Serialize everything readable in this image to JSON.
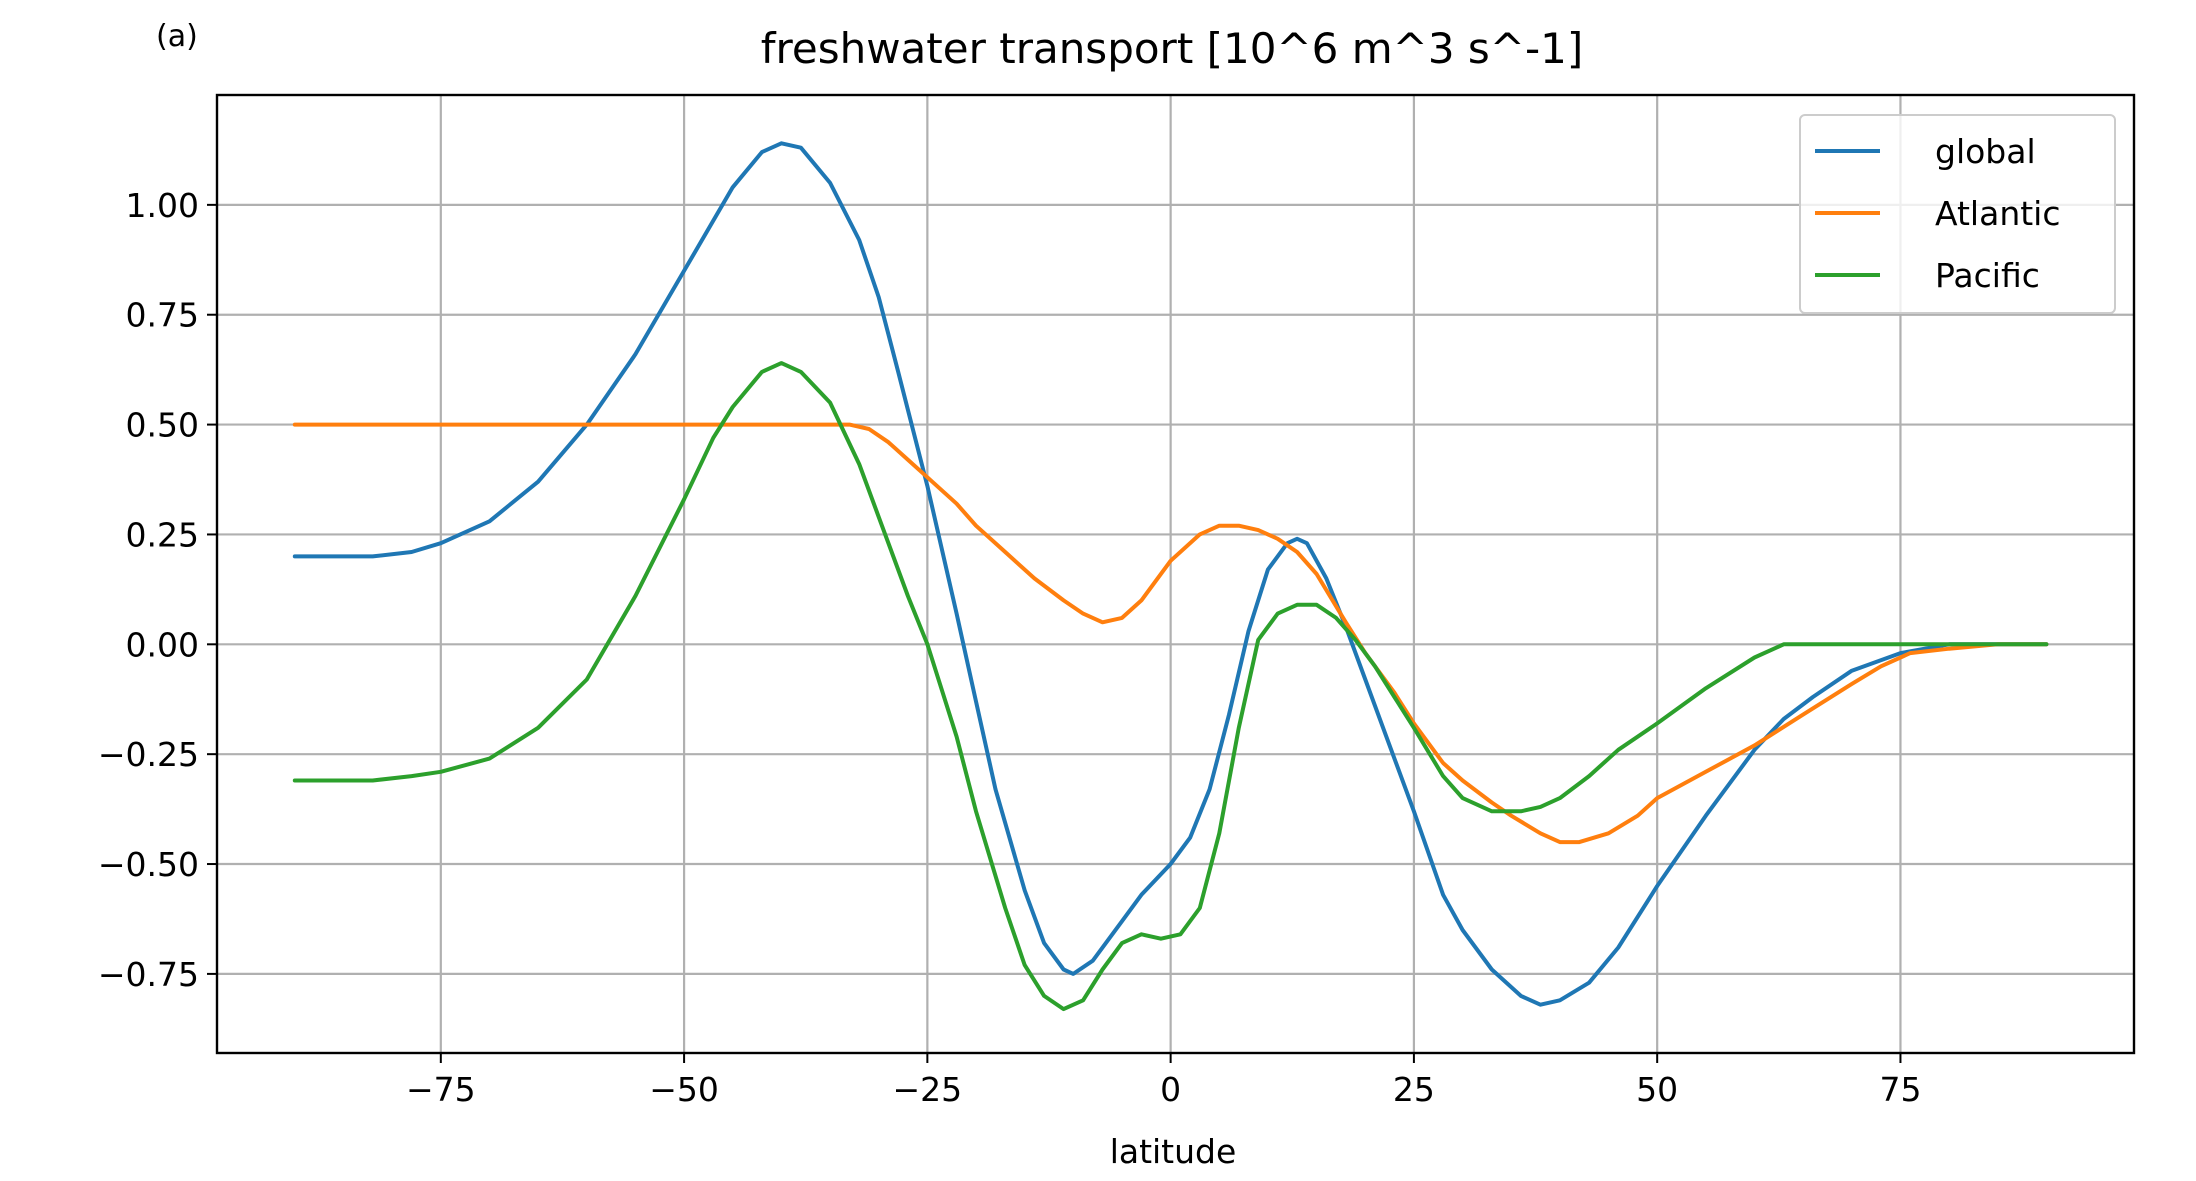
{
  "panel_label": "(a)",
  "chart_data": {
    "type": "line",
    "title": "freshwater transport [10^6 m^3 s^-1]",
    "xlabel": "latitude",
    "ylabel": "",
    "xlim": [
      -98,
      99
    ],
    "ylim": [
      -0.93,
      1.25
    ],
    "xticks": [
      -75,
      -50,
      -25,
      0,
      25,
      50,
      75
    ],
    "xtick_labels": [
      "−75",
      "−50",
      "−25",
      "0",
      "25",
      "50",
      "75"
    ],
    "yticks": [
      -0.75,
      -0.5,
      -0.25,
      0.0,
      0.25,
      0.5,
      0.75,
      1.0
    ],
    "ytick_labels": [
      "−0.75",
      "−0.50",
      "−0.25",
      "0.00",
      "0.25",
      "0.50",
      "0.75",
      "1.00"
    ],
    "grid": true,
    "legend_position": "top-right",
    "series": [
      {
        "name": "global",
        "color": "#1f77b4",
        "x": [
          -90,
          -82,
          -78,
          -75,
          -70,
          -65,
          -60,
          -55,
          -50,
          -45,
          -42,
          -40,
          -38,
          -35,
          -32,
          -30,
          -28,
          -25,
          -22,
          -20,
          -18,
          -15,
          -13,
          -11,
          -10,
          -8,
          -5,
          -3,
          0,
          2,
          4,
          6,
          8,
          10,
          12,
          13,
          14,
          16,
          18,
          20,
          22,
          25,
          28,
          30,
          33,
          36,
          38,
          40,
          43,
          46,
          50,
          55,
          60,
          63,
          66,
          70,
          75,
          80,
          85,
          90
        ],
        "y": [
          0.2,
          0.2,
          0.21,
          0.23,
          0.28,
          0.37,
          0.5,
          0.66,
          0.85,
          1.04,
          1.12,
          1.14,
          1.13,
          1.05,
          0.92,
          0.79,
          0.62,
          0.36,
          0.07,
          -0.13,
          -0.33,
          -0.56,
          -0.68,
          -0.74,
          -0.75,
          -0.72,
          -0.63,
          -0.57,
          -0.5,
          -0.44,
          -0.33,
          -0.16,
          0.03,
          0.17,
          0.23,
          0.24,
          0.23,
          0.15,
          0.04,
          -0.08,
          -0.2,
          -0.38,
          -0.57,
          -0.65,
          -0.74,
          -0.8,
          -0.82,
          -0.81,
          -0.77,
          -0.69,
          -0.55,
          -0.39,
          -0.24,
          -0.17,
          -0.12,
          -0.06,
          -0.02,
          0.0,
          0.0,
          0.0
        ]
      },
      {
        "name": "Atlantic",
        "color": "#ff7f0e",
        "x": [
          -90,
          -80,
          -70,
          -60,
          -50,
          -40,
          -35,
          -33,
          -31,
          -29,
          -27,
          -25,
          -22,
          -20,
          -17,
          -14,
          -11,
          -9,
          -7,
          -5,
          -3,
          0,
          3,
          5,
          7,
          9,
          11,
          13,
          15,
          18,
          20,
          23,
          25,
          28,
          30,
          33,
          35,
          38,
          40,
          42,
          45,
          48,
          50,
          55,
          60,
          65,
          70,
          73,
          76,
          80,
          85,
          90
        ],
        "y": [
          0.5,
          0.5,
          0.5,
          0.5,
          0.5,
          0.5,
          0.5,
          0.5,
          0.49,
          0.46,
          0.42,
          0.38,
          0.32,
          0.27,
          0.21,
          0.15,
          0.1,
          0.07,
          0.05,
          0.06,
          0.1,
          0.19,
          0.25,
          0.27,
          0.27,
          0.26,
          0.24,
          0.21,
          0.16,
          0.05,
          -0.02,
          -0.11,
          -0.18,
          -0.27,
          -0.31,
          -0.36,
          -0.39,
          -0.43,
          -0.45,
          -0.45,
          -0.43,
          -0.39,
          -0.35,
          -0.29,
          -0.23,
          -0.16,
          -0.09,
          -0.05,
          -0.02,
          -0.01,
          0.0,
          0.0
        ]
      },
      {
        "name": "Pacific",
        "color": "#2ca02c",
        "x": [
          -90,
          -82,
          -78,
          -75,
          -70,
          -65,
          -60,
          -55,
          -50,
          -47,
          -45,
          -42,
          -40,
          -38,
          -35,
          -32,
          -30,
          -27,
          -25,
          -22,
          -20,
          -17,
          -15,
          -13,
          -11,
          -9,
          -7,
          -5,
          -3,
          -1,
          1,
          3,
          5,
          7,
          9,
          11,
          13,
          15,
          17,
          19,
          21,
          23,
          25,
          28,
          30,
          33,
          36,
          38,
          40,
          43,
          46,
          50,
          55,
          60,
          63,
          66,
          70,
          75,
          80,
          85,
          90
        ],
        "y": [
          -0.31,
          -0.31,
          -0.3,
          -0.29,
          -0.26,
          -0.19,
          -0.08,
          0.11,
          0.33,
          0.47,
          0.54,
          0.62,
          0.64,
          0.62,
          0.55,
          0.41,
          0.29,
          0.11,
          0.0,
          -0.21,
          -0.38,
          -0.6,
          -0.73,
          -0.8,
          -0.83,
          -0.81,
          -0.74,
          -0.68,
          -0.66,
          -0.67,
          -0.66,
          -0.6,
          -0.43,
          -0.19,
          0.01,
          0.07,
          0.09,
          0.09,
          0.06,
          0.01,
          -0.05,
          -0.12,
          -0.19,
          -0.3,
          -0.35,
          -0.38,
          -0.38,
          -0.37,
          -0.35,
          -0.3,
          -0.24,
          -0.18,
          -0.1,
          -0.03,
          0.0,
          0.0,
          0.0,
          0.0,
          0.0,
          0.0,
          0.0
        ]
      }
    ]
  }
}
